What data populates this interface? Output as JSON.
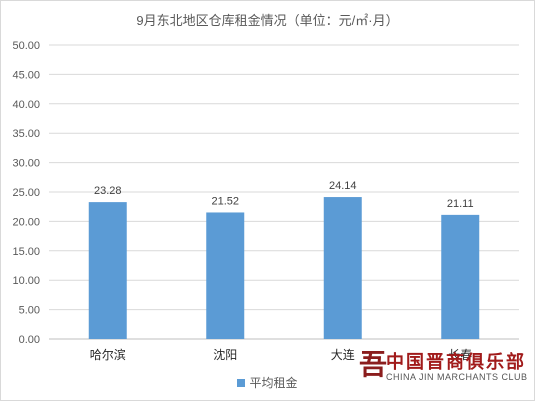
{
  "chart_data": {
    "type": "bar",
    "title": "9月东北地区仓库租金情况（单位：元/㎡·月）",
    "categories": [
      "哈尔滨",
      "沈阳",
      "大连",
      "长春"
    ],
    "series": [
      {
        "name": "平均租金",
        "values": [
          23.28,
          21.52,
          24.14,
          21.11
        ]
      }
    ],
    "data_labels": [
      "23.28",
      "21.52",
      "24.14",
      "21.11"
    ],
    "yticks": [
      "0.00",
      "5.00",
      "10.00",
      "15.00",
      "20.00",
      "25.00",
      "30.00",
      "35.00",
      "40.00",
      "45.00",
      "50.00"
    ],
    "ylim": [
      0,
      50
    ],
    "grid": true,
    "legend_position": "bottom",
    "bar_color": "#5b9bd5"
  },
  "watermark": {
    "chinese": "中国晋商俱乐部",
    "english": "CHINA JIN MARCHANTS CLUB"
  }
}
